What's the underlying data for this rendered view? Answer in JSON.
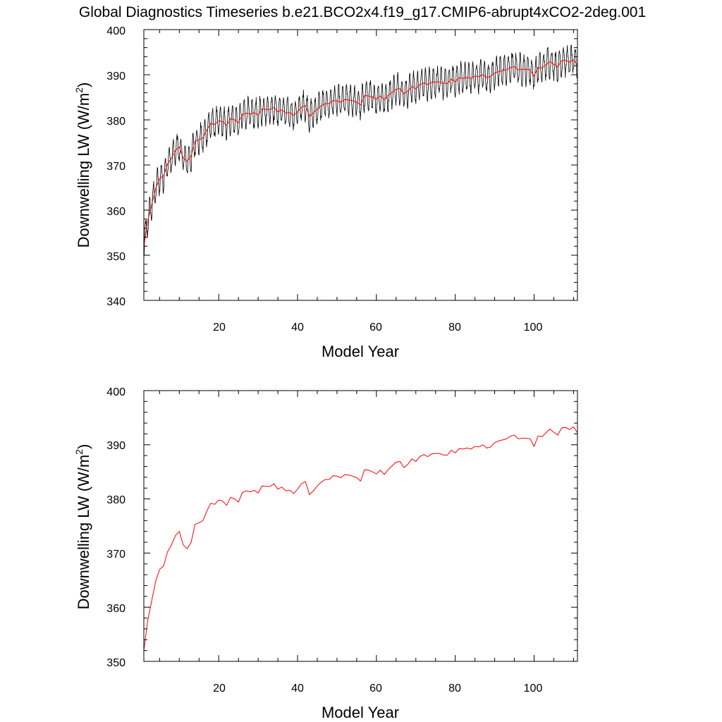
{
  "title": "Global Diagnostics Timeseries b.e21.BCO2x4.f19_g17.CMIP6-abrupt4xCO2-2deg.001",
  "colors": {
    "annual": "#ff0000",
    "monthly": "#000000",
    "axis": "#000000"
  },
  "chart_data": [
    {
      "type": "line",
      "panel": "top",
      "xlabel": "Model Year",
      "ylabel": "Downwelling LW (W/m",
      "ylabel_sup": "2",
      "ylabel_close": ")",
      "xlim": [
        1,
        111
      ],
      "ylim": [
        340,
        400
      ],
      "xticks": [
        20,
        40,
        60,
        80,
        100
      ],
      "yticks": [
        340,
        350,
        360,
        370,
        380,
        390,
        400
      ],
      "series": [
        {
          "name": "monthly",
          "color": "#000000",
          "resolution": "monthly",
          "seasonal_amplitude": 3.0,
          "noise": 1.0
        },
        {
          "name": "annual",
          "color": "#ff0000",
          "resolution": "annual"
        }
      ]
    },
    {
      "type": "line",
      "panel": "bottom",
      "xlabel": "Model Year",
      "ylabel": "Downwelling LW (W/m",
      "ylabel_sup": "2",
      "ylabel_close": ")",
      "xlim": [
        1,
        111
      ],
      "ylim": [
        350,
        400
      ],
      "xticks": [
        20,
        40,
        60,
        80,
        100
      ],
      "yticks": [
        350,
        360,
        370,
        380,
        390,
        400
      ],
      "series": [
        {
          "name": "annual",
          "color": "#ff0000",
          "resolution": "annual"
        }
      ]
    }
  ],
  "annual_series": {
    "x_start": 1,
    "values": [
      352.0,
      357.6,
      361.2,
      364.8,
      367.0,
      367.6,
      370.2,
      371.5,
      373.2,
      374.0,
      371.5,
      370.8,
      372.0,
      375.3,
      375.6,
      376.0,
      377.8,
      379.2,
      379.0,
      379.8,
      379.6,
      378.8,
      380.3,
      380.0,
      379.4,
      381.2,
      381.5,
      381.3,
      381.6,
      381.1,
      382.4,
      382.3,
      382.3,
      382.8,
      381.8,
      382.2,
      381.5,
      381.6,
      381.0,
      381.8,
      382.8,
      383.2,
      380.8,
      381.5,
      382.4,
      383.1,
      383.6,
      383.6,
      384.3,
      384.2,
      383.9,
      384.5,
      384.4,
      384.2,
      383.9,
      383.3,
      385.4,
      385.3,
      385.0,
      384.6,
      385.3,
      384.5,
      385.4,
      386.1,
      386.8,
      386.9,
      385.8,
      386.4,
      387.4,
      386.9,
      387.8,
      388.2,
      387.8,
      388.3,
      388.4,
      388.4,
      388.1,
      388.1,
      389.0,
      388.5,
      389.3,
      389.2,
      389.4,
      389.2,
      389.7,
      389.6,
      390.0,
      389.4,
      389.6,
      390.4,
      390.7,
      390.9,
      391.1,
      391.6,
      391.8,
      391.1,
      391.2,
      391.2,
      391.1,
      389.7,
      391.6,
      391.5,
      392.2,
      392.9,
      392.3,
      391.8,
      393.1,
      393.2,
      392.8,
      393.3,
      392.2
    ]
  },
  "axis_labels": {
    "y_top": [
      "340",
      "350",
      "360",
      "370",
      "380",
      "390",
      "400"
    ],
    "y_bottom": [
      "350",
      "360",
      "370",
      "380",
      "390",
      "400"
    ],
    "x": [
      "20",
      "40",
      "60",
      "80",
      "100"
    ]
  }
}
